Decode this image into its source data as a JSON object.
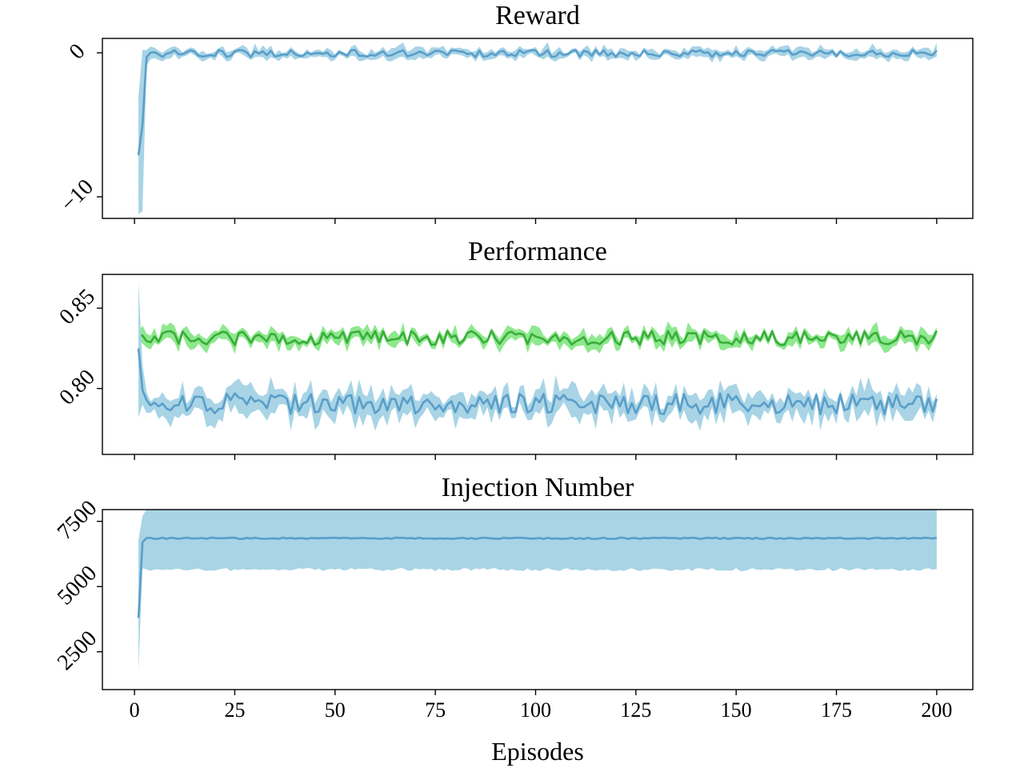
{
  "figure": {
    "xlabel": "Episodes"
  },
  "chart_data": [
    {
      "type": "line",
      "title": "Reward",
      "xlabel": "",
      "ylabel": "",
      "xlim": [
        -8,
        209
      ],
      "ylim": [
        -11.5,
        1.0
      ],
      "xticks": [
        0,
        25,
        50,
        75,
        100,
        125,
        150,
        175,
        200
      ],
      "xtick_labels_visible": false,
      "yticks": [
        -10,
        0
      ],
      "ytick_labels": [
        "−10",
        "0"
      ],
      "grid": false,
      "legend": "none",
      "x_range": [
        1,
        200
      ],
      "series": [
        {
          "color": "#5a9ec9",
          "band_color": "#a8d4e6",
          "mean_start": [
            -7.1,
            -5.0,
            -0.3
          ],
          "band_start_lower": [
            -11.2,
            -11.0,
            -0.9
          ],
          "band_start_upper": [
            -3.0,
            0.2,
            0.2
          ],
          "steady_mean": -0.05,
          "steady_noise": 0.25,
          "steady_band": 0.35
        }
      ]
    },
    {
      "type": "line",
      "title": "Performance",
      "xlabel": "",
      "ylabel": "",
      "xlim": [
        -8,
        209
      ],
      "ylim": [
        0.759,
        0.871
      ],
      "xticks": [
        0,
        25,
        50,
        75,
        100,
        125,
        150,
        175,
        200
      ],
      "xtick_labels_visible": false,
      "yticks": [
        0.8,
        0.85
      ],
      "ytick_labels": [
        "0.80",
        "0.85"
      ],
      "grid": false,
      "legend": "none",
      "x_range": [
        1,
        200
      ],
      "series": [
        {
          "color": "#3aad3a",
          "band_color": "#8ee88e",
          "mean_start": [
            0.833
          ],
          "band_start_lower": [
            0.831
          ],
          "band_start_upper": [
            0.835
          ],
          "steady_mean": 0.8315,
          "steady_noise": 0.0045,
          "steady_band": 0.0045
        },
        {
          "color": "#5a9ec9",
          "band_color": "#a8d4e6",
          "mean_start": [
            0.825,
            0.799
          ],
          "band_start_lower": [
            0.782,
            0.79
          ],
          "band_start_upper": [
            0.866,
            0.815
          ],
          "steady_mean": 0.7905,
          "steady_noise": 0.0065,
          "steady_band": 0.0085
        }
      ]
    },
    {
      "type": "line",
      "title": "Injection Number",
      "xlabel": "Episodes",
      "ylabel": "",
      "xlim": [
        -8,
        209
      ],
      "ylim": [
        1050,
        7950
      ],
      "xticks": [
        0,
        25,
        50,
        75,
        100,
        125,
        150,
        175,
        200
      ],
      "xtick_labels": [
        "0",
        "25",
        "50",
        "75",
        "100",
        "125",
        "150",
        "175",
        "200"
      ],
      "xtick_labels_visible": true,
      "yticks": [
        2500,
        5000,
        7500
      ],
      "ytick_labels": [
        "2500",
        "5000",
        "7500"
      ],
      "grid": false,
      "legend": "none",
      "x_range": [
        1,
        200
      ],
      "series": [
        {
          "color": "#5a9ec9",
          "band_color": "#a8d4e6",
          "mean_start": [
            3800,
            6700
          ],
          "band_start_lower": [
            1800,
            5700
          ],
          "band_start_upper": [
            6800,
            7700
          ],
          "steady_mean": 6850,
          "steady_noise": 25,
          "steady_band_lower": 5650,
          "steady_band_upper": 8050
        }
      ]
    }
  ]
}
